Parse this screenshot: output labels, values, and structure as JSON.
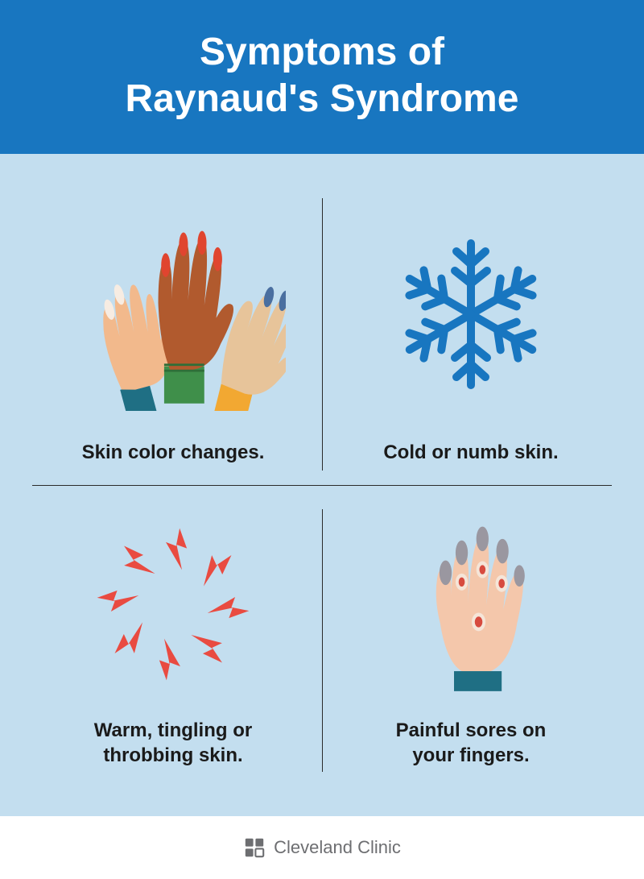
{
  "header": {
    "title_line1": "Symptoms of",
    "title_line2": "Raynaud's Syndrome",
    "bg_color": "#1876c0",
    "text_color": "#ffffff",
    "font_size": 48
  },
  "grid": {
    "bg_color": "#c3deef",
    "divider_color": "#2b2b2b",
    "caption_color": "#1a1a1a",
    "caption_font_size": 24,
    "cells": [
      {
        "id": "skin-color",
        "caption": "Skin color changes.",
        "icon": "hands",
        "hands": {
          "hand1": {
            "skin": "#f2b98c",
            "sleeve": "#1f6f84",
            "tips": "#f7ece2"
          },
          "hand2": {
            "skin": "#b15a2e",
            "sleeve": "#3f8f4a",
            "tips": "#e0452f"
          },
          "hand3": {
            "skin": "#e7c49a",
            "sleeve": "#f2a832",
            "tips": "#4a6fa0"
          }
        }
      },
      {
        "id": "cold-numb",
        "caption": "Cold or numb skin.",
        "icon": "snowflake",
        "snowflake": {
          "color": "#1876c0",
          "stroke_width": 10
        }
      },
      {
        "id": "warm-tingling",
        "caption": "Warm, tingling or\nthrobbing skin.",
        "icon": "bolts",
        "bolts": {
          "color": "#e94b41",
          "count": 8
        }
      },
      {
        "id": "sores",
        "caption": "Painful sores on\nyour fingers.",
        "icon": "sore-hand",
        "sore_hand": {
          "skin": "#f4c7ab",
          "sleeve": "#1f6f84",
          "tip": "#9a97a0",
          "sore_fill": "#d74b3f",
          "sore_ring": "#f5e5d8"
        }
      }
    ]
  },
  "footer": {
    "brand": "Cleveland Clinic",
    "logo_color": "#6d6e71"
  }
}
